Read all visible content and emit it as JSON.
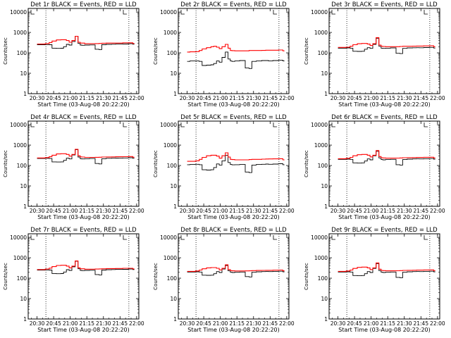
{
  "figure": {
    "xlabel": "Start Time (03-Aug-08 20:22:20)",
    "ylabel": "Counts/sec",
    "x_ticks": [
      "20:30",
      "20:45",
      "21:00",
      "21:15",
      "21:30",
      "21:45",
      "22:00"
    ],
    "y_ticks": [
      "1",
      "10",
      "100",
      "1000",
      "10000"
    ]
  },
  "colors": {
    "events": "#000000",
    "lld": "#ff0000",
    "frame": "#000000"
  },
  "chart_data": [
    {
      "type": "line",
      "title": "Det 1r BLACK = Events, RED = LLD",
      "xlabel": "Start Time (03-Aug-08 20:22:20)",
      "ylabel": "Counts/sec",
      "x_ticks": [
        "20:30",
        "20:45",
        "21:00",
        "21:15",
        "21:30",
        "21:45",
        "22:00"
      ],
      "ylim": [
        1,
        15000
      ],
      "yscale": "log",
      "x_minutes": [
        0,
        5,
        10,
        12,
        15,
        20,
        23,
        25,
        28,
        30,
        33,
        36,
        38,
        40,
        41,
        45,
        50,
        55,
        57,
        60,
        65,
        70,
        72,
        75,
        80,
        85,
        88
      ],
      "series": [
        {
          "values": [
            250,
            250,
            255,
            250,
            170,
            165,
            168,
            200,
            260,
            240,
            360,
            650,
            290,
            240,
            235,
            240,
            245,
            150,
            145,
            250,
            260,
            265,
            270,
            268,
            272,
            280,
            265
          ]
        },
        {
          "values": [
            270,
            270,
            285,
            320,
            380,
            430,
            440,
            440,
            400,
            330,
            400,
            650,
            330,
            300,
            300,
            280,
            280,
            285,
            290,
            295,
            300,
            300,
            300,
            300,
            310,
            310,
            290
          ]
        }
      ],
      "vlines_minutes": [
        8,
        83
      ]
    },
    {
      "type": "line",
      "title": "Det 2r BLACK = Events, RED = LLD",
      "xlabel": "Start Time (03-Aug-08 20:22:20)",
      "ylabel": "Counts/sec",
      "x_ticks": [
        "20:30",
        "20:45",
        "21:00",
        "21:15",
        "21:30",
        "21:45",
        "22:00"
      ],
      "ylim": [
        1,
        15000
      ],
      "yscale": "log",
      "x_minutes": [
        0,
        5,
        10,
        12,
        15,
        20,
        23,
        25,
        28,
        30,
        33,
        36,
        38,
        40,
        41,
        45,
        50,
        55,
        57,
        60,
        65,
        70,
        72,
        75,
        80,
        85,
        88
      ],
      "series": [
        {
          "values": [
            38,
            40,
            40,
            38,
            24,
            25,
            26,
            30,
            40,
            35,
            60,
            110,
            50,
            40,
            38,
            40,
            42,
            18,
            17,
            38,
            40,
            42,
            42,
            40,
            42,
            44,
            40
          ]
        },
        {
          "values": [
            110,
            112,
            115,
            130,
            155,
            180,
            200,
            210,
            190,
            160,
            200,
            260,
            170,
            130,
            128,
            125,
            125,
            125,
            130,
            130,
            130,
            132,
            135,
            135,
            135,
            138,
            125
          ]
        }
      ],
      "vlines_minutes": [
        8,
        83
      ]
    },
    {
      "type": "line",
      "title": "Det 3r BLACK = Events, RED = LLD",
      "xlabel": "Start Time (03-Aug-08 20:22:20)",
      "ylabel": "Counts/sec",
      "x_ticks": [
        "20:30",
        "20:45",
        "21:00",
        "21:15",
        "21:30",
        "21:45",
        "22:00"
      ],
      "ylim": [
        1,
        15000
      ],
      "yscale": "log",
      "x_minutes": [
        0,
        5,
        10,
        12,
        15,
        20,
        23,
        25,
        28,
        30,
        33,
        36,
        38,
        40,
        41,
        45,
        50,
        55,
        57,
        60,
        65,
        70,
        72,
        75,
        80,
        85,
        88
      ],
      "series": [
        {
          "values": [
            170,
            170,
            175,
            170,
            120,
            118,
            120,
            150,
            180,
            165,
            260,
            520,
            210,
            170,
            165,
            170,
            175,
            95,
            92,
            165,
            175,
            178,
            180,
            178,
            182,
            185,
            172
          ]
        },
        {
          "values": [
            185,
            185,
            190,
            210,
            250,
            280,
            290,
            290,
            270,
            230,
            280,
            560,
            240,
            210,
            205,
            200,
            200,
            200,
            205,
            210,
            210,
            212,
            215,
            215,
            218,
            220,
            200
          ]
        }
      ],
      "vlines_minutes": [
        8,
        83
      ]
    },
    {
      "type": "line",
      "title": "Det 4r BLACK = Events, RED = LLD",
      "xlabel": "Start Time (03-Aug-08 20:22:20)",
      "ylabel": "Counts/sec",
      "x_ticks": [
        "20:30",
        "20:45",
        "21:00",
        "21:15",
        "21:30",
        "21:45",
        "22:00"
      ],
      "ylim": [
        1,
        15000
      ],
      "yscale": "log",
      "x_minutes": [
        0,
        5,
        10,
        12,
        15,
        20,
        23,
        25,
        28,
        30,
        33,
        36,
        38,
        40,
        41,
        45,
        50,
        55,
        57,
        60,
        65,
        70,
        72,
        75,
        80,
        85,
        88
      ],
      "series": [
        {
          "values": [
            220,
            220,
            225,
            220,
            150,
            148,
            150,
            180,
            230,
            210,
            330,
            600,
            260,
            215,
            210,
            215,
            220,
            125,
            120,
            215,
            225,
            230,
            232,
            230,
            235,
            240,
            225
          ]
        },
        {
          "values": [
            235,
            235,
            245,
            270,
            320,
            370,
            380,
            380,
            350,
            290,
            350,
            620,
            300,
            265,
            260,
            250,
            250,
            252,
            255,
            260,
            262,
            265,
            268,
            268,
            272,
            275,
            255
          ]
        }
      ],
      "vlines_minutes": [
        8,
        83
      ]
    },
    {
      "type": "line",
      "title": "Det 5r BLACK = Events, RED = LLD",
      "xlabel": "Start Time (03-Aug-08 20:22:20)",
      "ylabel": "Counts/sec",
      "x_ticks": [
        "20:30",
        "20:45",
        "21:00",
        "21:15",
        "21:30",
        "21:45",
        "22:00"
      ],
      "ylim": [
        1,
        15000
      ],
      "yscale": "log",
      "x_minutes": [
        0,
        5,
        10,
        12,
        15,
        20,
        23,
        25,
        28,
        30,
        33,
        36,
        38,
        40,
        41,
        45,
        50,
        55,
        57,
        60,
        65,
        70,
        72,
        75,
        80,
        85,
        88
      ],
      "series": [
        {
          "values": [
            110,
            112,
            115,
            110,
            62,
            60,
            62,
            80,
            120,
            105,
            170,
            320,
            140,
            112,
            108,
            110,
            112,
            48,
            45,
            105,
            112,
            115,
            118,
            115,
            118,
            122,
            110
          ]
        },
        {
          "values": [
            160,
            160,
            170,
            200,
            250,
            300,
            320,
            320,
            290,
            230,
            300,
            420,
            260,
            200,
            195,
            190,
            190,
            190,
            195,
            200,
            200,
            205,
            208,
            210,
            212,
            215,
            190
          ]
        }
      ],
      "vlines_minutes": [
        8,
        83
      ]
    },
    {
      "type": "line",
      "title": "Det 6r BLACK = Events, RED = LLD",
      "xlabel": "Start Time (03-Aug-08 20:22:20)",
      "ylabel": "Counts/sec",
      "x_ticks": [
        "20:30",
        "20:45",
        "21:00",
        "21:15",
        "21:30",
        "21:45",
        "22:00"
      ],
      "ylim": [
        1,
        15000
      ],
      "yscale": "log",
      "x_minutes": [
        0,
        5,
        10,
        12,
        15,
        20,
        23,
        25,
        28,
        30,
        33,
        36,
        38,
        40,
        41,
        45,
        50,
        55,
        57,
        60,
        65,
        70,
        72,
        75,
        80,
        85,
        88
      ],
      "series": [
        {
          "values": [
            200,
            200,
            205,
            200,
            135,
            132,
            135,
            165,
            210,
            190,
            300,
            500,
            235,
            195,
            190,
            195,
            200,
            110,
            105,
            195,
            205,
            210,
            212,
            210,
            215,
            218,
            205
          ]
        },
        {
          "values": [
            215,
            215,
            225,
            250,
            300,
            340,
            350,
            350,
            320,
            265,
            320,
            540,
            275,
            240,
            235,
            230,
            230,
            232,
            235,
            240,
            242,
            245,
            248,
            248,
            252,
            255,
            235
          ]
        }
      ],
      "vlines_minutes": [
        8,
        83
      ]
    },
    {
      "type": "line",
      "title": "Det 7r BLACK = Events, RED = LLD",
      "xlabel": "Start Time (03-Aug-08 20:22:20)",
      "ylabel": "Counts/sec",
      "x_ticks": [
        "20:30",
        "20:45",
        "21:00",
        "21:15",
        "21:30",
        "21:45",
        "22:00"
      ],
      "ylim": [
        1,
        15000
      ],
      "yscale": "log",
      "x_minutes": [
        0,
        5,
        10,
        12,
        15,
        20,
        23,
        25,
        28,
        30,
        33,
        36,
        38,
        40,
        41,
        45,
        50,
        55,
        57,
        60,
        65,
        70,
        72,
        75,
        80,
        85,
        88
      ],
      "series": [
        {
          "values": [
            250,
            250,
            255,
            250,
            170,
            165,
            168,
            200,
            260,
            240,
            360,
            680,
            290,
            240,
            235,
            240,
            245,
            150,
            145,
            250,
            260,
            265,
            270,
            268,
            272,
            280,
            265
          ]
        },
        {
          "values": [
            265,
            265,
            280,
            310,
            370,
            420,
            430,
            430,
            390,
            320,
            390,
            700,
            320,
            290,
            290,
            275,
            275,
            280,
            285,
            290,
            295,
            295,
            298,
            298,
            305,
            305,
            285
          ]
        }
      ],
      "vlines_minutes": [
        8,
        83
      ]
    },
    {
      "type": "line",
      "title": "Det 8r BLACK = Events, RED = LLD",
      "xlabel": "Start Time (03-Aug-08 20:22:20)",
      "ylabel": "Counts/sec",
      "x_ticks": [
        "20:30",
        "20:45",
        "21:00",
        "21:15",
        "21:30",
        "21:45",
        "22:00"
      ],
      "ylim": [
        1,
        15000
      ],
      "yscale": "log",
      "x_minutes": [
        0,
        5,
        10,
        12,
        15,
        20,
        23,
        25,
        28,
        30,
        33,
        36,
        38,
        40,
        41,
        45,
        50,
        55,
        57,
        60,
        65,
        70,
        72,
        75,
        80,
        85,
        88
      ],
      "series": [
        {
          "values": [
            200,
            200,
            205,
            200,
            140,
            138,
            140,
            165,
            210,
            190,
            280,
            420,
            230,
            195,
            190,
            195,
            200,
            120,
            115,
            195,
            205,
            210,
            212,
            210,
            215,
            218,
            205
          ]
        },
        {
          "values": [
            215,
            215,
            225,
            250,
            290,
            320,
            330,
            330,
            305,
            255,
            305,
            450,
            265,
            235,
            230,
            225,
            225,
            228,
            230,
            235,
            238,
            240,
            242,
            242,
            246,
            250,
            230
          ]
        }
      ],
      "vlines_minutes": [
        8,
        83
      ]
    },
    {
      "type": "line",
      "title": "Det 9r BLACK = Events, RED = LLD",
      "xlabel": "Start Time (03-Aug-08 20:22:20)",
      "ylabel": "Counts/sec",
      "x_ticks": [
        "20:30",
        "20:45",
        "21:00",
        "21:15",
        "21:30",
        "21:45",
        "22:00"
      ],
      "ylim": [
        1,
        15000
      ],
      "yscale": "log",
      "x_minutes": [
        0,
        5,
        10,
        12,
        15,
        20,
        23,
        25,
        28,
        30,
        33,
        36,
        38,
        40,
        41,
        45,
        50,
        55,
        57,
        60,
        65,
        70,
        72,
        75,
        80,
        85,
        88
      ],
      "series": [
        {
          "values": [
            200,
            200,
            205,
            200,
            135,
            132,
            135,
            165,
            210,
            190,
            300,
            520,
            235,
            195,
            190,
            195,
            200,
            110,
            105,
            195,
            205,
            210,
            212,
            210,
            215,
            218,
            205
          ]
        },
        {
          "values": [
            215,
            215,
            225,
            250,
            300,
            340,
            350,
            350,
            320,
            265,
            320,
            560,
            275,
            240,
            235,
            230,
            230,
            232,
            235,
            240,
            242,
            245,
            248,
            248,
            252,
            255,
            235
          ]
        }
      ],
      "vlines_minutes": [
        8,
        83
      ]
    }
  ]
}
